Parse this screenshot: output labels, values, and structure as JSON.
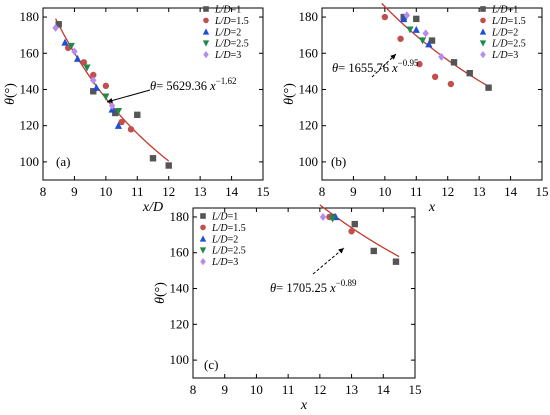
{
  "colors": {
    "L/D=1": "#555555",
    "L/D=1.5": "#c0504d",
    "L/D=2": "#1f4fd6",
    "L/D=2.5": "#1f8a4c",
    "L/D=3": "#b58cf0",
    "fit": "#c0392b",
    "axis": "#000000"
  },
  "chart_data": [
    {
      "type": "scatter",
      "panel_label": "(a)",
      "xlabel": "x/D",
      "ylabel": "θ(°)",
      "xlim": [
        8,
        15
      ],
      "ylim": [
        90,
        185
      ],
      "xticks": [
        "8",
        "9",
        "10",
        "11",
        "12",
        "13",
        "14",
        "15"
      ],
      "yticks": [
        "100",
        "120",
        "140",
        "160",
        "180"
      ],
      "legend": [
        "L/D=1",
        "L/D=1.5",
        "L/D=2",
        "L/D=2.5",
        "L/D=3"
      ],
      "series": [
        {
          "name": "L/D=1",
          "marker": "square",
          "points": [
            [
              8.5,
              176
            ],
            [
              9.6,
              139
            ],
            [
              10.3,
              127
            ],
            [
              11.0,
              126
            ],
            [
              11.5,
              102
            ],
            [
              12.0,
              98
            ]
          ]
        },
        {
          "name": "L/D=1.5",
          "marker": "circle",
          "points": [
            [
              8.8,
              163
            ],
            [
              9.3,
              155
            ],
            [
              9.6,
              148
            ],
            [
              10.0,
              142
            ],
            [
              10.5,
              122
            ],
            [
              10.8,
              118
            ]
          ]
        },
        {
          "name": "L/D=2",
          "marker": "triangle-up",
          "points": [
            [
              8.7,
              166
            ],
            [
              9.1,
              157
            ],
            [
              9.7,
              141
            ],
            [
              10.2,
              129
            ],
            [
              10.4,
              120
            ]
          ]
        },
        {
          "name": "L/D=2.5",
          "marker": "triangle-down",
          "points": [
            [
              8.9,
              164
            ],
            [
              9.4,
              152
            ],
            [
              10.0,
              136
            ],
            [
              10.4,
              128
            ]
          ]
        },
        {
          "name": "L/D=3",
          "marker": "diamond",
          "points": [
            [
              8.4,
              174
            ],
            [
              9.0,
              161
            ],
            [
              9.6,
              145
            ],
            [
              10.2,
              131
            ]
          ]
        }
      ],
      "fit": {
        "coef": 5629.36,
        "exp": -1.62,
        "x_range": [
          8.4,
          12.0
        ]
      },
      "equation": {
        "lhs": "θ= 5629.36",
        "var": "x",
        "exp": "−1.62"
      }
    },
    {
      "type": "scatter",
      "panel_label": "(b)",
      "xlabel": "x",
      "ylabel": "θ(°)",
      "xlim": [
        8,
        15
      ],
      "ylim": [
        90,
        185
      ],
      "xticks": [
        "8",
        "9",
        "10",
        "11",
        "12",
        "13",
        "14",
        "15"
      ],
      "yticks": [
        "100",
        "120",
        "140",
        "160",
        "180"
      ],
      "legend": [
        "L/D=1",
        "L/D=1.5",
        "L/D=2",
        "L/D=2.5",
        "L/D=3"
      ],
      "series": [
        {
          "name": "L/D=1",
          "marker": "square",
          "points": [
            [
              10.6,
              180
            ],
            [
              11.0,
              179
            ],
            [
              11.5,
              167
            ],
            [
              12.2,
              155
            ],
            [
              12.7,
              149
            ],
            [
              13.3,
              141
            ]
          ]
        },
        {
          "name": "L/D=1.5",
          "marker": "circle",
          "points": [
            [
              10.0,
              180
            ],
            [
              10.5,
              168
            ],
            [
              11.1,
              154
            ],
            [
              11.6,
              147
            ],
            [
              12.1,
              143
            ]
          ]
        },
        {
          "name": "L/D=2",
          "marker": "triangle-up",
          "points": [
            [
              10.6,
              179
            ],
            [
              11.0,
              173
            ],
            [
              11.4,
              165
            ]
          ]
        },
        {
          "name": "L/D=2.5",
          "marker": "triangle-down",
          "points": [
            [
              10.8,
              173
            ],
            [
              11.2,
              167
            ]
          ]
        },
        {
          "name": "L/D=3",
          "marker": "diamond",
          "points": [
            [
              10.7,
              181
            ],
            [
              11.3,
              171
            ],
            [
              11.8,
              158
            ]
          ]
        }
      ],
      "fit": {
        "coef": 1655.76,
        "exp": -0.95,
        "x_range": [
          9.9,
          13.4
        ]
      },
      "equation": {
        "lhs": "θ= 1655.76",
        "var": "x",
        "exp": "−0.95"
      }
    },
    {
      "type": "scatter",
      "panel_label": "(c)",
      "xlabel": "x",
      "ylabel": "θ(°)",
      "xlim": [
        8,
        15
      ],
      "ylim": [
        90,
        185
      ],
      "xticks": [
        "8",
        "9",
        "10",
        "11",
        "12",
        "13",
        "14",
        "15"
      ],
      "yticks": [
        "100",
        "120",
        "140",
        "160",
        "180"
      ],
      "legend": [
        "L/D=1",
        "L/D=1.5",
        "L/D=2",
        "L/D=2.5",
        "L/D=3"
      ],
      "series": [
        {
          "name": "L/D=1",
          "marker": "square",
          "points": [
            [
              12.4,
              180
            ],
            [
              13.1,
              176
            ],
            [
              13.7,
              161
            ],
            [
              14.4,
              155
            ]
          ]
        },
        {
          "name": "L/D=1.5",
          "marker": "circle",
          "points": [
            [
              12.3,
              180
            ],
            [
              13.0,
              172
            ]
          ]
        },
        {
          "name": "L/D=2",
          "marker": "triangle-up",
          "points": [
            [
              12.5,
              180
            ]
          ]
        },
        {
          "name": "L/D=2.5",
          "marker": "triangle-down",
          "points": [
            [
              12.4,
              179
            ]
          ]
        },
        {
          "name": "L/D=3",
          "marker": "diamond",
          "points": [
            [
              12.1,
              180
            ]
          ]
        }
      ],
      "fit": {
        "coef": 1705.25,
        "exp": -0.89,
        "x_range": [
          12.0,
          14.5
        ]
      },
      "equation": {
        "lhs": "θ= 1705.25",
        "var": "x",
        "exp": "−0.89"
      }
    }
  ]
}
